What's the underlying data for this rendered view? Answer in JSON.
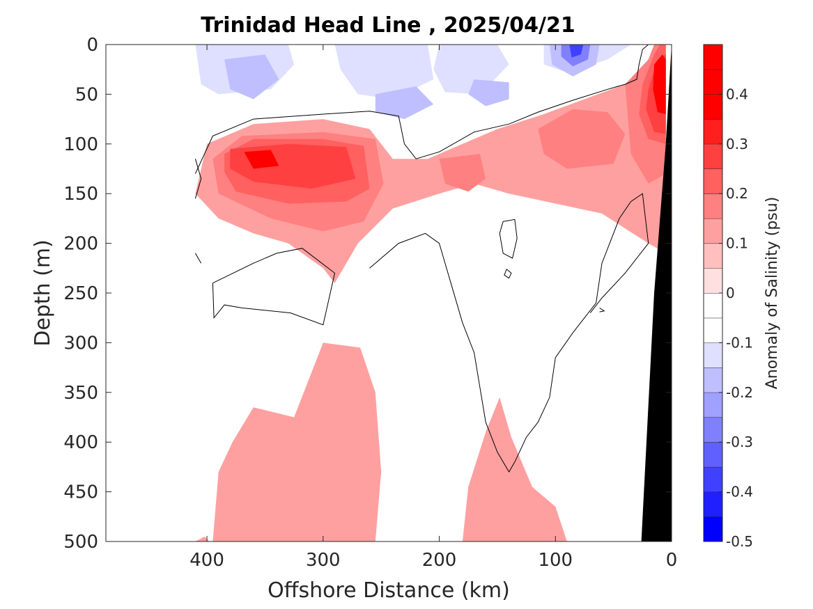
{
  "chart_data": {
    "type": "heatmap",
    "title": "Trinidad Head Line , 2025/04/21",
    "xlabel": "Offshore Distance (km)",
    "ylabel": "Depth (m)",
    "xlim": [
      487,
      0
    ],
    "ylim": [
      0,
      500
    ],
    "x_reversed": true,
    "y_reversed": true,
    "x_ticks": [
      400,
      300,
      200,
      100,
      0
    ],
    "y_ticks": [
      0,
      50,
      100,
      150,
      200,
      250,
      300,
      350,
      400,
      450,
      500
    ],
    "colorbar": {
      "label": "Anomaly of Salinity (psu)",
      "range": [
        -0.5,
        0.5
      ],
      "levels": [
        -0.5,
        -0.45,
        -0.4,
        -0.35,
        -0.3,
        -0.25,
        -0.2,
        -0.15,
        -0.1,
        -0.05,
        0,
        0.05,
        0.1,
        0.15,
        0.2,
        0.25,
        0.3,
        0.35,
        0.4,
        0.45,
        0.5
      ],
      "ticks": [
        -0.5,
        -0.4,
        -0.3,
        -0.2,
        -0.1,
        0,
        0.1,
        0.2,
        0.3,
        0.4
      ],
      "colors": [
        "#0000ff",
        "#1f1fff",
        "#4040ff",
        "#6060ff",
        "#8080ff",
        "#a0a0ff",
        "#bfbfff",
        "#dfdfff",
        "#ffffff",
        "#ffffff",
        "#ffdfdf",
        "#ffbfbf",
        "#ffa0a0",
        "#ff8080",
        "#ff6060",
        "#ff4040",
        "#ff1f1f",
        "#ff0000",
        "#ff0000",
        "#ff0000"
      ]
    },
    "bathymetry_color": "#000000",
    "regions": [
      {
        "level": -0.1,
        "polygon": [
          [
            410,
            0
          ],
          [
            25,
            0
          ],
          [
            20,
            30
          ],
          [
            35,
            45
          ],
          [
            60,
            65
          ],
          [
            100,
            82
          ],
          [
            145,
            90
          ],
          [
            190,
            88
          ],
          [
            240,
            70
          ],
          [
            285,
            68
          ],
          [
            340,
            72
          ],
          [
            385,
            82
          ],
          [
            405,
            110
          ],
          [
            410,
            120
          ]
        ]
      },
      {
        "level": -0.15,
        "polygon": [
          [
            410,
            0
          ],
          [
            330,
            0
          ],
          [
            325,
            20
          ],
          [
            345,
            45
          ],
          [
            390,
            50
          ],
          [
            405,
            40
          ]
        ]
      },
      {
        "level": -0.15,
        "polygon": [
          [
            290,
            0
          ],
          [
            210,
            0
          ],
          [
            205,
            35
          ],
          [
            240,
            55
          ],
          [
            270,
            50
          ],
          [
            285,
            25
          ]
        ]
      },
      {
        "level": -0.15,
        "polygon": [
          [
            200,
            0
          ],
          [
            150,
            0
          ],
          [
            140,
            20
          ],
          [
            165,
            50
          ],
          [
            195,
            48
          ],
          [
            205,
            25
          ]
        ]
      },
      {
        "level": -0.15,
        "polygon": [
          [
            110,
            0
          ],
          [
            35,
            0
          ],
          [
            55,
            15
          ],
          [
            90,
            28
          ],
          [
            110,
            20
          ]
        ]
      },
      {
        "level": -0.2,
        "polygon": [
          [
            385,
            15
          ],
          [
            350,
            10
          ],
          [
            338,
            35
          ],
          [
            360,
            55
          ],
          [
            380,
            45
          ]
        ]
      },
      {
        "level": -0.2,
        "polygon": [
          [
            255,
            50
          ],
          [
            220,
            42
          ],
          [
            205,
            60
          ],
          [
            230,
            75
          ],
          [
            255,
            68
          ]
        ]
      },
      {
        "level": -0.2,
        "polygon": [
          [
            170,
            35
          ],
          [
            140,
            38
          ],
          [
            140,
            55
          ],
          [
            160,
            62
          ],
          [
            175,
            50
          ]
        ]
      },
      {
        "level": -0.2,
        "polygon": [
          [
            105,
            0
          ],
          [
            62,
            0
          ],
          [
            65,
            20
          ],
          [
            85,
            32
          ],
          [
            103,
            20
          ]
        ]
      },
      {
        "level": -0.3,
        "polygon": [
          [
            95,
            0
          ],
          [
            70,
            0
          ],
          [
            72,
            15
          ],
          [
            85,
            22
          ],
          [
            95,
            12
          ]
        ]
      },
      {
        "level": -0.4,
        "polygon": [
          [
            88,
            0
          ],
          [
            76,
            0
          ],
          [
            78,
            10
          ],
          [
            86,
            13
          ]
        ]
      },
      {
        "level": -0.1,
        "polygon": [
          [
            345,
            240
          ],
          [
            325,
            237
          ],
          [
            328,
            250
          ],
          [
            345,
            248
          ]
        ]
      },
      {
        "level": 0.1,
        "polygon": [
          [
            400,
            100
          ],
          [
            360,
            80
          ],
          [
            300,
            75
          ],
          [
            260,
            85
          ],
          [
            240,
            115
          ],
          [
            210,
            115
          ],
          [
            180,
            100
          ],
          [
            150,
            85
          ],
          [
            110,
            70
          ],
          [
            75,
            55
          ],
          [
            40,
            40
          ],
          [
            20,
            30
          ],
          [
            15,
            0
          ],
          [
            5,
            0
          ],
          [
            5,
            210
          ],
          [
            20,
            200
          ],
          [
            60,
            170
          ],
          [
            100,
            160
          ],
          [
            140,
            150
          ],
          [
            170,
            140
          ],
          [
            200,
            150
          ],
          [
            240,
            165
          ],
          [
            270,
            200
          ],
          [
            290,
            240
          ],
          [
            300,
            225
          ],
          [
            330,
            200
          ],
          [
            360,
            190
          ],
          [
            390,
            175
          ],
          [
            410,
            150
          ]
        ]
      },
      {
        "level": 0.15,
        "polygon": [
          [
            395,
            115
          ],
          [
            370,
            92
          ],
          [
            300,
            88
          ],
          [
            255,
            95
          ],
          [
            248,
            140
          ],
          [
            265,
            178
          ],
          [
            300,
            188
          ],
          [
            345,
            175
          ],
          [
            390,
            150
          ]
        ]
      },
      {
        "level": 0.15,
        "polygon": [
          [
            200,
            115
          ],
          [
            165,
            110
          ],
          [
            160,
            135
          ],
          [
            175,
            148
          ],
          [
            195,
            140
          ]
        ]
      },
      {
        "level": 0.15,
        "polygon": [
          [
            115,
            85
          ],
          [
            85,
            65
          ],
          [
            55,
            68
          ],
          [
            40,
            90
          ],
          [
            50,
            120
          ],
          [
            90,
            125
          ],
          [
            110,
            110
          ]
        ]
      },
      {
        "level": 0.15,
        "polygon": [
          [
            40,
            40
          ],
          [
            20,
            15
          ],
          [
            15,
            0
          ],
          [
            5,
            0
          ],
          [
            5,
            130
          ],
          [
            20,
            140
          ],
          [
            35,
            110
          ]
        ]
      },
      {
        "level": 0.2,
        "polygon": [
          [
            385,
            110
          ],
          [
            360,
            95
          ],
          [
            300,
            95
          ],
          [
            265,
            102
          ],
          [
            260,
            145
          ],
          [
            280,
            158
          ],
          [
            330,
            160
          ],
          [
            375,
            148
          ],
          [
            385,
            128
          ]
        ]
      },
      {
        "level": 0.2,
        "polygon": [
          [
            25,
            40
          ],
          [
            15,
            10
          ],
          [
            10,
            0
          ],
          [
            5,
            0
          ],
          [
            5,
            100
          ],
          [
            20,
            95
          ],
          [
            28,
            70
          ]
        ]
      },
      {
        "level": 0.25,
        "polygon": [
          [
            380,
            105
          ],
          [
            330,
            100
          ],
          [
            280,
            103
          ],
          [
            272,
            135
          ],
          [
            310,
            145
          ],
          [
            360,
            138
          ],
          [
            380,
            125
          ]
        ]
      },
      {
        "level": 0.25,
        "polygon": [
          [
            20,
            45
          ],
          [
            12,
            15
          ],
          [
            5,
            10
          ],
          [
            5,
            90
          ],
          [
            15,
            88
          ],
          [
            22,
            65
          ]
        ]
      },
      {
        "level": 0.35,
        "polygon": [
          [
            368,
            108
          ],
          [
            345,
            106
          ],
          [
            338,
            122
          ],
          [
            360,
            125
          ]
        ]
      },
      {
        "level": 0.35,
        "polygon": [
          [
            15,
            20
          ],
          [
            8,
            10
          ],
          [
            5,
            15
          ],
          [
            5,
            70
          ],
          [
            12,
            68
          ],
          [
            16,
            45
          ]
        ]
      },
      {
        "level": 0.1,
        "polygon": [
          [
            395,
            500
          ],
          [
            390,
            430
          ],
          [
            378,
            400
          ],
          [
            360,
            365
          ],
          [
            325,
            375
          ],
          [
            300,
            300
          ],
          [
            268,
            305
          ],
          [
            255,
            350
          ],
          [
            250,
            430
          ],
          [
            255,
            500
          ]
        ]
      },
      {
        "level": 0.1,
        "polygon": [
          [
            180,
            500
          ],
          [
            175,
            445
          ],
          [
            160,
            390
          ],
          [
            148,
            355
          ],
          [
            138,
            395
          ],
          [
            120,
            445
          ],
          [
            100,
            465
          ],
          [
            90,
            500
          ]
        ]
      },
      {
        "level": 0.1,
        "polygon": [
          [
            410,
            500
          ],
          [
            402,
            495
          ],
          [
            398,
            500
          ]
        ]
      }
    ],
    "contours_zero": [
      [
        [
          410,
          155
        ],
        [
          405,
          135
        ],
        [
          410,
          115
        ]
      ],
      [
        [
          410,
          130
        ],
        [
          395,
          92
        ],
        [
          360,
          75
        ],
        [
          300,
          70
        ],
        [
          260,
          67
        ],
        [
          235,
          72
        ],
        [
          230,
          100
        ],
        [
          220,
          115
        ],
        [
          200,
          108
        ],
        [
          170,
          88
        ],
        [
          140,
          80
        ],
        [
          115,
          68
        ],
        [
          85,
          56
        ],
        [
          55,
          45
        ],
        [
          40,
          40
        ],
        [
          30,
          35
        ],
        [
          28,
          20
        ],
        [
          25,
          5
        ],
        [
          20,
          0
        ]
      ],
      [
        [
          410,
          210
        ],
        [
          405,
          220
        ]
      ],
      [
        [
          395,
          240
        ],
        [
          360,
          220
        ],
        [
          340,
          210
        ],
        [
          318,
          205
        ],
        [
          290,
          230
        ],
        [
          300,
          282
        ],
        [
          328,
          270
        ],
        [
          370,
          265
        ],
        [
          385,
          262
        ],
        [
          394,
          275
        ],
        [
          395,
          240
        ]
      ],
      [
        [
          260,
          225
        ],
        [
          235,
          200
        ],
        [
          212,
          190
        ],
        [
          200,
          200
        ],
        [
          190,
          240
        ],
        [
          180,
          280
        ],
        [
          170,
          310
        ],
        [
          165,
          345
        ],
        [
          160,
          380
        ],
        [
          150,
          410
        ],
        [
          140,
          430
        ],
        [
          135,
          420
        ],
        [
          125,
          395
        ],
        [
          115,
          380
        ],
        [
          105,
          355
        ],
        [
          100,
          315
        ],
        [
          85,
          290
        ],
        [
          65,
          260
        ],
        [
          60,
          220
        ],
        [
          45,
          175
        ],
        [
          35,
          158
        ],
        [
          25,
          150
        ],
        [
          20,
          200
        ],
        [
          40,
          230
        ],
        [
          60,
          255
        ],
        [
          70,
          270
        ]
      ],
      [
        [
          145,
          178
        ],
        [
          135,
          176
        ],
        [
          133,
          195
        ],
        [
          137,
          215
        ],
        [
          145,
          210
        ],
        [
          148,
          190
        ],
        [
          145,
          178
        ]
      ],
      [
        [
          142,
          226
        ],
        [
          138,
          230
        ],
        [
          140,
          235
        ],
        [
          144,
          232
        ],
        [
          142,
          226
        ]
      ],
      [
        [
          62,
          265
        ],
        [
          58,
          268
        ],
        [
          62,
          269
        ]
      ]
    ],
    "bathymetry": [
      [
        0,
        0
      ],
      [
        0,
        500
      ],
      [
        26,
        500
      ],
      [
        15,
        250
      ],
      [
        5,
        100
      ]
    ]
  }
}
